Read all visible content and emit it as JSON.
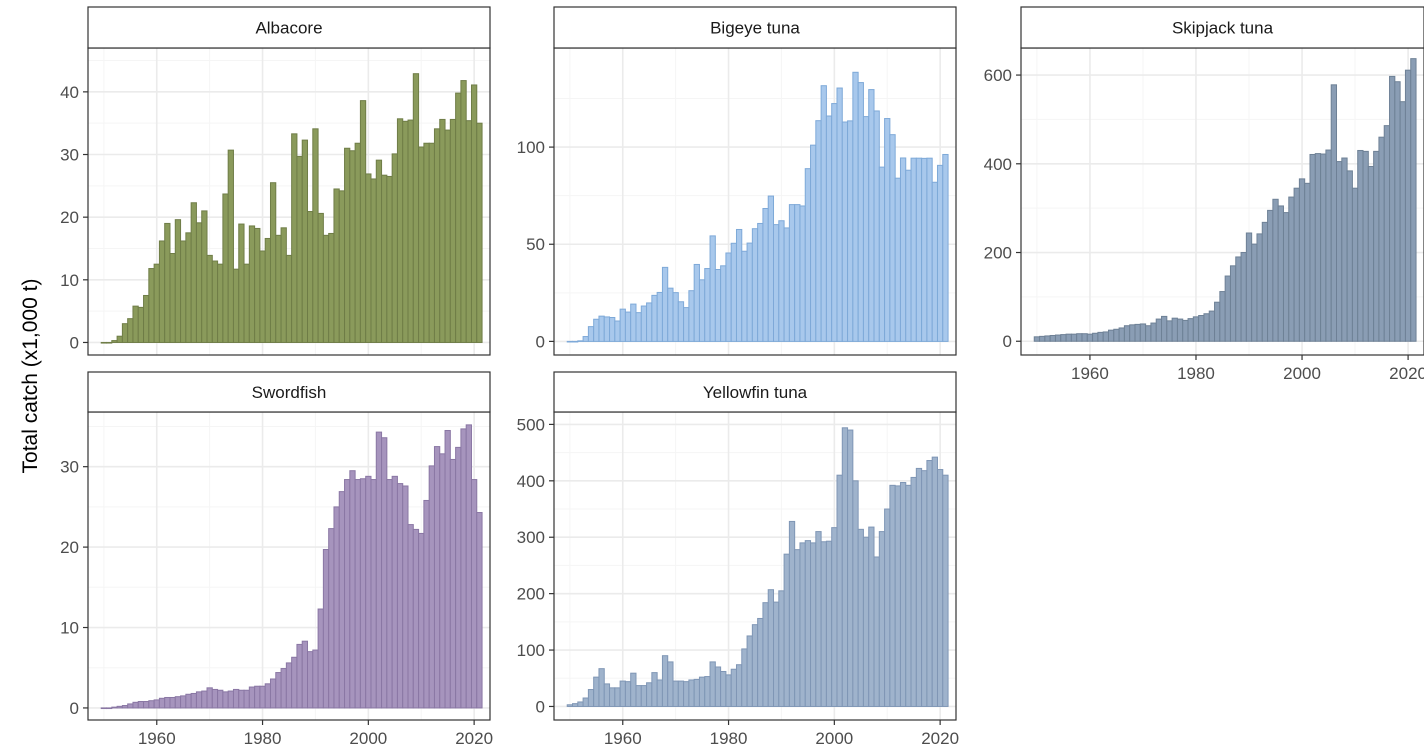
{
  "figure": {
    "ylabel": "Total catch (x1,000 t)"
  },
  "chart_data": [
    {
      "type": "bar",
      "title": "Albacore",
      "xlim": [
        1947,
        2023
      ],
      "ylim": [
        -2,
        47
      ],
      "xticks": [
        1960,
        1980,
        2000,
        2020
      ],
      "yticks": [
        0,
        10,
        20,
        30,
        40
      ],
      "show_x_ticks": false,
      "x": [
        1950,
        1951,
        1952,
        1953,
        1954,
        1955,
        1956,
        1957,
        1958,
        1959,
        1960,
        1961,
        1962,
        1963,
        1964,
        1965,
        1966,
        1967,
        1968,
        1969,
        1970,
        1971,
        1972,
        1973,
        1974,
        1975,
        1976,
        1977,
        1978,
        1979,
        1980,
        1981,
        1982,
        1983,
        1984,
        1985,
        1986,
        1987,
        1988,
        1989,
        1990,
        1991,
        1992,
        1993,
        1994,
        1995,
        1996,
        1997,
        1998,
        1999,
        2000,
        2001,
        2002,
        2003,
        2004,
        2005,
        2006,
        2007,
        2008,
        2009,
        2010,
        2011,
        2012,
        2013,
        2014,
        2015,
        2016,
        2017,
        2018,
        2019,
        2020,
        2021
      ],
      "values": [
        0.0,
        0.0,
        0.3,
        1.0,
        3.0,
        3.8,
        5.8,
        5.6,
        7.5,
        11.8,
        12.5,
        16.2,
        19.0,
        14.2,
        19.6,
        16.2,
        17.5,
        22.3,
        19.1,
        21.0,
        13.9,
        13.0,
        12.5,
        23.7,
        30.7,
        11.7,
        18.9,
        12.5,
        18.6,
        18.2,
        14.6,
        16.6,
        25.5,
        17.1,
        18.3,
        13.9,
        33.3,
        29.7,
        32.3,
        20.9,
        34.1,
        20.6,
        17.1,
        17.4,
        24.5,
        24.2,
        31.0,
        30.6,
        31.8,
        38.6,
        26.9,
        26.1,
        29.1,
        26.7,
        26.5,
        30.1,
        35.7,
        35.3,
        35.5,
        42.9,
        31.2,
        31.8,
        31.8,
        34.1,
        35.6,
        33.9,
        35.6,
        39.8,
        41.8,
        35.4,
        41.1,
        35.0
      ]
    },
    {
      "type": "bar",
      "title": "Bigeye tuna",
      "xlim": [
        1947,
        2023
      ],
      "ylim": [
        -7,
        151
      ],
      "xticks": [
        1960,
        1980,
        2000,
        2020
      ],
      "yticks": [
        0,
        50,
        100
      ],
      "show_x_ticks": false,
      "x": [
        1950,
        1951,
        1952,
        1953,
        1954,
        1955,
        1956,
        1957,
        1958,
        1959,
        1960,
        1961,
        1962,
        1963,
        1964,
        1965,
        1966,
        1967,
        1968,
        1969,
        1970,
        1971,
        1972,
        1973,
        1974,
        1975,
        1976,
        1977,
        1978,
        1979,
        1980,
        1981,
        1982,
        1983,
        1984,
        1985,
        1986,
        1987,
        1988,
        1989,
        1990,
        1991,
        1992,
        1993,
        1994,
        1995,
        1996,
        1997,
        1998,
        1999,
        2000,
        2001,
        2002,
        2003,
        2004,
        2005,
        2006,
        2007,
        2008,
        2009,
        2010,
        2011,
        2012,
        2013,
        2014,
        2015,
        2016,
        2017,
        2018,
        2019,
        2020,
        2021
      ],
      "values": [
        0.0,
        0.0,
        0.3,
        2.5,
        7.6,
        11.4,
        13.0,
        12.6,
        12.3,
        10.5,
        16.6,
        15.1,
        19.2,
        14.8,
        18.2,
        19.8,
        23.7,
        25.2,
        38.1,
        27.4,
        25.1,
        20.4,
        17.4,
        26.1,
        39.6,
        31.7,
        37.5,
        54.3,
        37.0,
        38.9,
        45.5,
        50.5,
        57.6,
        46.4,
        50.6,
        58.0,
        60.7,
        68.4,
        74.8,
        60.1,
        62.1,
        58.4,
        70.4,
        70.4,
        69.7,
        88.9,
        101.0,
        113.6,
        131.6,
        116.0,
        122.4,
        130.4,
        112.9,
        113.5,
        138.5,
        133.2,
        115.7,
        129.6,
        118.6,
        89.7,
        114.7,
        106.4,
        84.0,
        94.4,
        88.1,
        94.3,
        94.3,
        94.2,
        94.3,
        81.9,
        90.6,
        96.2
      ]
    },
    {
      "type": "bar",
      "title": "Skipjack tuna",
      "xlim": [
        1947,
        2023
      ],
      "ylim": [
        -31,
        661
      ],
      "xticks": [
        1960,
        1980,
        2000,
        2020
      ],
      "yticks": [
        0,
        200,
        400,
        600
      ],
      "show_x_ticks": true,
      "x": [
        1950,
        1951,
        1952,
        1953,
        1954,
        1955,
        1956,
        1957,
        1958,
        1959,
        1960,
        1961,
        1962,
        1963,
        1964,
        1965,
        1966,
        1967,
        1968,
        1969,
        1970,
        1971,
        1972,
        1973,
        1974,
        1975,
        1976,
        1977,
        1978,
        1979,
        1980,
        1981,
        1982,
        1983,
        1984,
        1985,
        1986,
        1987,
        1988,
        1989,
        1990,
        1991,
        1992,
        1993,
        1994,
        1995,
        1996,
        1997,
        1998,
        1999,
        2000,
        2001,
        2002,
        2003,
        2004,
        2005,
        2006,
        2007,
        2008,
        2009,
        2010,
        2011,
        2012,
        2013,
        2014,
        2015,
        2016,
        2017,
        2018,
        2019,
        2020,
        2021
      ],
      "values": [
        10,
        11,
        12,
        13,
        14,
        15,
        16,
        16,
        17,
        17,
        16,
        18,
        20,
        21,
        25,
        27,
        30,
        35,
        37,
        38,
        39,
        35,
        41,
        50,
        56,
        46,
        52,
        50,
        47,
        51,
        55,
        58,
        62,
        68,
        88,
        112,
        147,
        170,
        190,
        200,
        244,
        219,
        242,
        268,
        295,
        320,
        305,
        290,
        325,
        345,
        366,
        356,
        421,
        423,
        422,
        431,
        578,
        405,
        413,
        384,
        345,
        430,
        428,
        394,
        428,
        460,
        486,
        597,
        585,
        540,
        611,
        637
      ]
    },
    {
      "type": "bar",
      "title": "Swordfish",
      "xlim": [
        1947,
        2023
      ],
      "ylim": [
        -1.5,
        36.8
      ],
      "xticks": [
        1960,
        1980,
        2000,
        2020
      ],
      "yticks": [
        0,
        10,
        20,
        30
      ],
      "show_x_ticks": true,
      "x": [
        1950,
        1951,
        1952,
        1953,
        1954,
        1955,
        1956,
        1957,
        1958,
        1959,
        1960,
        1961,
        1962,
        1963,
        1964,
        1965,
        1966,
        1967,
        1968,
        1969,
        1970,
        1971,
        1972,
        1973,
        1974,
        1975,
        1976,
        1977,
        1978,
        1979,
        1980,
        1981,
        1982,
        1983,
        1984,
        1985,
        1986,
        1987,
        1988,
        1989,
        1990,
        1991,
        1992,
        1993,
        1994,
        1995,
        1996,
        1997,
        1998,
        1999,
        2000,
        2001,
        2002,
        2003,
        2004,
        2005,
        2006,
        2007,
        2008,
        2009,
        2010,
        2011,
        2012,
        2013,
        2014,
        2015,
        2016,
        2017,
        2018,
        2019,
        2020,
        2021
      ],
      "values": [
        0.0,
        0.0,
        0.1,
        0.2,
        0.3,
        0.5,
        0.7,
        0.8,
        0.8,
        0.9,
        1.0,
        1.2,
        1.3,
        1.3,
        1.4,
        1.5,
        1.7,
        1.8,
        2.0,
        2.1,
        2.5,
        2.3,
        2.2,
        2.0,
        2.1,
        2.3,
        2.2,
        2.2,
        2.6,
        2.7,
        2.7,
        3.0,
        3.6,
        4.4,
        4.9,
        5.6,
        6.3,
        7.9,
        8.3,
        7.0,
        7.2,
        12.3,
        19.7,
        22.3,
        25.0,
        26.9,
        28.4,
        29.5,
        28.4,
        28.5,
        28.8,
        28.4,
        34.3,
        33.6,
        28.4,
        28.8,
        27.9,
        27.6,
        22.8,
        22.2,
        21.7,
        25.8,
        30.1,
        32.5,
        31.6,
        34.5,
        30.9,
        32.4,
        34.7,
        35.2,
        28.4,
        24.3
      ]
    },
    {
      "type": "bar",
      "title": "Yellowfin tuna",
      "xlim": [
        1947,
        2023
      ],
      "ylim": [
        -24,
        522
      ],
      "xticks": [
        1960,
        1980,
        2000,
        2020
      ],
      "yticks": [
        0,
        100,
        200,
        300,
        400,
        500
      ],
      "show_x_ticks": true,
      "x": [
        1950,
        1951,
        1952,
        1953,
        1954,
        1955,
        1956,
        1957,
        1958,
        1959,
        1960,
        1961,
        1962,
        1963,
        1964,
        1965,
        1966,
        1967,
        1968,
        1969,
        1970,
        1971,
        1972,
        1973,
        1974,
        1975,
        1976,
        1977,
        1978,
        1979,
        1980,
        1981,
        1982,
        1983,
        1984,
        1985,
        1986,
        1987,
        1988,
        1989,
        1990,
        1991,
        1992,
        1993,
        1994,
        1995,
        1996,
        1997,
        1998,
        1999,
        2000,
        2001,
        2002,
        2003,
        2004,
        2005,
        2006,
        2007,
        2008,
        2009,
        2010,
        2011,
        2012,
        2013,
        2014,
        2015,
        2016,
        2017,
        2018,
        2019,
        2020,
        2021
      ],
      "values": [
        3,
        5,
        8,
        15,
        30,
        52,
        67,
        40,
        33,
        33,
        45,
        44,
        59,
        37,
        37,
        42,
        60,
        47,
        90,
        79,
        45,
        45,
        44,
        47,
        48,
        52,
        53,
        79,
        70,
        62,
        56,
        66,
        74,
        102,
        125,
        145,
        156,
        184,
        207,
        185,
        205,
        270,
        328,
        278,
        290,
        294,
        290,
        310,
        292,
        293,
        317,
        410,
        494,
        490,
        400,
        314,
        300,
        318,
        265,
        310,
        350,
        392,
        391,
        397,
        392,
        406,
        422,
        418,
        436,
        442,
        420,
        410
      ]
    }
  ],
  "colors": {
    "series": [
      "#8a9a5b",
      "#a8c8ec",
      "#8a9db4",
      "#a694bd",
      "#9fb3cc"
    ],
    "outline": [
      "#6f7d47",
      "#7ea9d8",
      "#6e8196",
      "#8a77a4",
      "#7f96b5"
    ],
    "panel_border": "#333333",
    "grid_major": "#ebebeb",
    "grid_minor": "#f5f5f5",
    "tick_label": "#4d4d4d"
  }
}
